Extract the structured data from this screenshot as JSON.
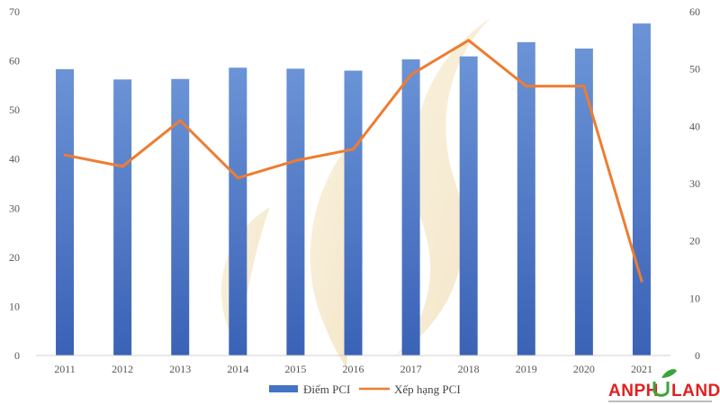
{
  "chart_data": {
    "type": "bar",
    "categories": [
      "2011",
      "2012",
      "2013",
      "2014",
      "2015",
      "2016",
      "2017",
      "2018",
      "2019",
      "2020",
      "2021"
    ],
    "series": [
      {
        "name": "Điểm PCI",
        "kind": "bar",
        "axis": "left",
        "color": "#4472c4",
        "values": [
          58.3,
          56.2,
          56.3,
          58.6,
          58.4,
          58.0,
          60.3,
          60.9,
          63.8,
          62.5,
          67.6
        ]
      },
      {
        "name": "Xếp hạng PCI",
        "kind": "line",
        "axis": "right",
        "color": "#ed7d31",
        "values": [
          35,
          33,
          41,
          31,
          34,
          36,
          49,
          55,
          47,
          47,
          13
        ]
      }
    ],
    "y_left": {
      "min": 0,
      "max": 70,
      "ticks": [
        0,
        10,
        20,
        30,
        40,
        50,
        60,
        70
      ]
    },
    "y_right": {
      "min": 0,
      "max": 60,
      "ticks": [
        0,
        10,
        20,
        30,
        40,
        50,
        60
      ]
    },
    "legend_position": "bottom"
  },
  "watermark": {
    "brand_text_a": "ANPH",
    "brand_text_b": "LAND"
  }
}
